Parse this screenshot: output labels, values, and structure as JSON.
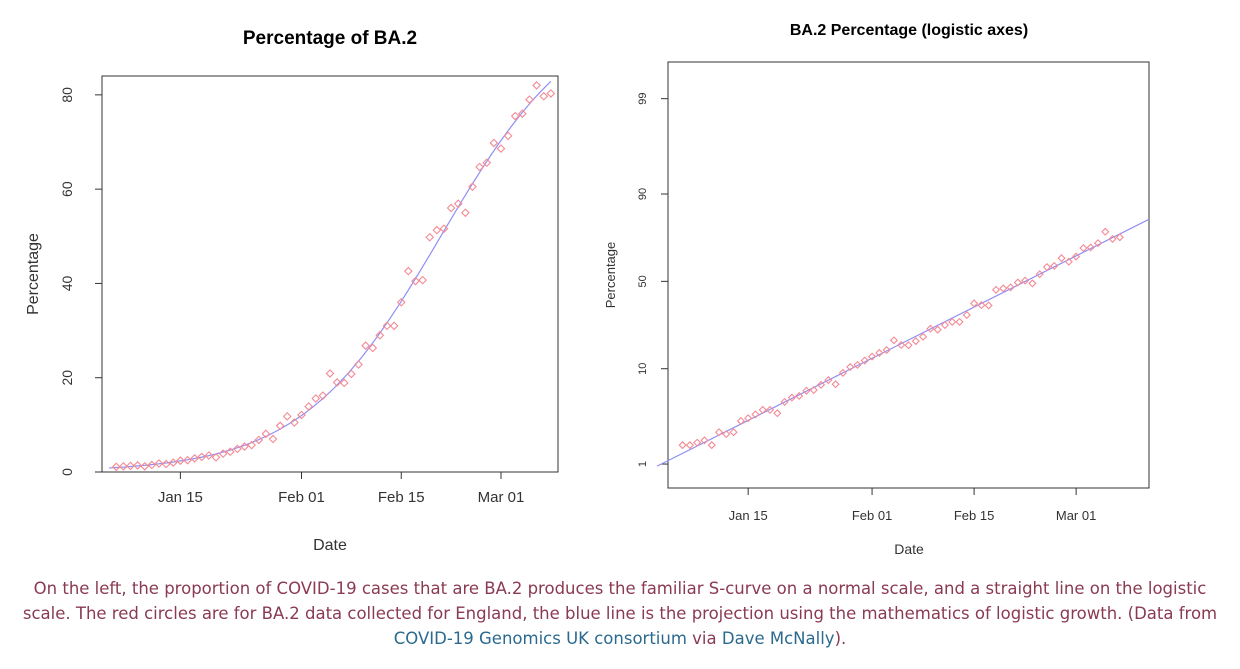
{
  "colors": {
    "points": "#f48a94",
    "fit_line": "#8f8ff5",
    "caption_text": "#8a3a52",
    "caption_link": "#2b6a8e"
  },
  "chart_data": [
    {
      "type": "scatter",
      "title": "Percentage of BA.2",
      "xlabel": "Date",
      "ylabel": "Percentage",
      "x_ticks": [
        "Jan 15",
        "Feb 01",
        "Feb 15",
        "Mar 01"
      ],
      "y_ticks": [
        0,
        20,
        40,
        60,
        80
      ],
      "xlim": [
        "2022-01-04",
        "2022-03-09"
      ],
      "ylim": [
        0,
        84
      ],
      "series": [
        {
          "points": [
            [
              "2022-01-06",
              1.1
            ],
            [
              "2022-01-07",
              1.2
            ],
            [
              "2022-01-08",
              1.3
            ],
            [
              "2022-01-09",
              1.4
            ],
            [
              "2022-01-10",
              1.2
            ],
            [
              "2022-01-11",
              1.5
            ],
            [
              "2022-01-12",
              1.8
            ],
            [
              "2022-01-13",
              1.7
            ],
            [
              "2022-01-14",
              2.0
            ],
            [
              "2022-01-15",
              2.4
            ],
            [
              "2022-01-16",
              2.5
            ],
            [
              "2022-01-17",
              2.9
            ],
            [
              "2022-01-18",
              3.2
            ],
            [
              "2022-01-19",
              3.5
            ],
            [
              "2022-01-20",
              3.1
            ],
            [
              "2022-01-21",
              3.9
            ],
            [
              "2022-01-22",
              4.3
            ],
            [
              "2022-01-23",
              4.9
            ],
            [
              "2022-01-24",
              5.4
            ],
            [
              "2022-01-25",
              5.7
            ],
            [
              "2022-01-26",
              6.8
            ],
            [
              "2022-01-27",
              8.1
            ],
            [
              "2022-01-28",
              7.0
            ],
            [
              "2022-01-29",
              9.8
            ],
            [
              "2022-01-30",
              11.8
            ],
            [
              "2022-01-31",
              10.5
            ],
            [
              "2022-02-01",
              12.1
            ],
            [
              "2022-02-02",
              13.9
            ],
            [
              "2022-02-03",
              15.6
            ],
            [
              "2022-02-04",
              16.2
            ],
            [
              "2022-02-05",
              20.9
            ],
            [
              "2022-02-06",
              19.0
            ],
            [
              "2022-02-07",
              18.9
            ],
            [
              "2022-02-08",
              20.8
            ],
            [
              "2022-02-09",
              22.8
            ],
            [
              "2022-02-10",
              26.8
            ],
            [
              "2022-02-11",
              26.3
            ],
            [
              "2022-02-12",
              29.0
            ],
            [
              "2022-02-13",
              31.0
            ],
            [
              "2022-02-14",
              31.0
            ],
            [
              "2022-02-15",
              36.0
            ],
            [
              "2022-02-16",
              42.6
            ],
            [
              "2022-02-17",
              40.5
            ],
            [
              "2022-02-18",
              40.7
            ],
            [
              "2022-02-19",
              49.8
            ],
            [
              "2022-02-20",
              51.3
            ],
            [
              "2022-02-21",
              51.6
            ],
            [
              "2022-02-22",
              56.0
            ],
            [
              "2022-02-23",
              56.9
            ],
            [
              "2022-02-24",
              55.0
            ],
            [
              "2022-02-25",
              60.5
            ],
            [
              "2022-02-26",
              64.7
            ],
            [
              "2022-02-27",
              65.6
            ],
            [
              "2022-02-28",
              69.8
            ],
            [
              "2022-03-01",
              68.6
            ],
            [
              "2022-03-02",
              71.3
            ],
            [
              "2022-03-03",
              75.5
            ],
            [
              "2022-03-04",
              76.0
            ],
            [
              "2022-03-05",
              79.0
            ],
            [
              "2022-03-06",
              82.0
            ],
            [
              "2022-03-07",
              79.7
            ],
            [
              "2022-03-08",
              80.3
            ]
          ]
        }
      ]
    },
    {
      "type": "scatter",
      "title": "BA.2 Percentage (logistic axes)",
      "xlabel": "Date",
      "ylabel": "Percentage",
      "y_scale": "logit",
      "x_ticks": [
        "Jan 15",
        "Feb 01",
        "Feb 15",
        "Mar 01"
      ],
      "y_ticks": [
        1,
        10,
        50,
        90,
        99
      ],
      "xlim": [
        "2022-01-04",
        "2022-03-11"
      ],
      "series": [
        {
          "points": [
            [
              "2022-01-06",
              1.6
            ],
            [
              "2022-01-07",
              1.6
            ],
            [
              "2022-01-08",
              1.7
            ],
            [
              "2022-01-09",
              1.8
            ],
            [
              "2022-01-10",
              1.6
            ],
            [
              "2022-01-11",
              2.2
            ],
            [
              "2022-01-12",
              2.1
            ],
            [
              "2022-01-13",
              2.2
            ],
            [
              "2022-01-14",
              2.9
            ],
            [
              "2022-01-15",
              3.1
            ],
            [
              "2022-01-16",
              3.4
            ],
            [
              "2022-01-17",
              3.8
            ],
            [
              "2022-01-18",
              3.8
            ],
            [
              "2022-01-19",
              3.5
            ],
            [
              "2022-01-20",
              4.6
            ],
            [
              "2022-01-21",
              5.1
            ],
            [
              "2022-01-22",
              5.3
            ],
            [
              "2022-01-23",
              6.0
            ],
            [
              "2022-01-24",
              6.1
            ],
            [
              "2022-01-25",
              6.9
            ],
            [
              "2022-01-26",
              7.7
            ],
            [
              "2022-01-27",
              7.0
            ],
            [
              "2022-01-28",
              9.1
            ],
            [
              "2022-01-29",
              10.4
            ],
            [
              "2022-01-30",
              10.9
            ],
            [
              "2022-01-31",
              12.0
            ],
            [
              "2022-02-01",
              13.1
            ],
            [
              "2022-02-02",
              14.2
            ],
            [
              "2022-02-03",
              15.1
            ],
            [
              "2022-02-04",
              18.5
            ],
            [
              "2022-02-05",
              16.8
            ],
            [
              "2022-02-06",
              16.7
            ],
            [
              "2022-02-07",
              18.2
            ],
            [
              "2022-02-08",
              19.9
            ],
            [
              "2022-02-09",
              23.3
            ],
            [
              "2022-02-10",
              22.9
            ],
            [
              "2022-02-11",
              25.0
            ],
            [
              "2022-02-12",
              26.5
            ],
            [
              "2022-02-13",
              26.5
            ],
            [
              "2022-02-14",
              30.0
            ],
            [
              "2022-02-15",
              36.5
            ],
            [
              "2022-02-16",
              35.5
            ],
            [
              "2022-02-17",
              35.3
            ],
            [
              "2022-02-18",
              44.7
            ],
            [
              "2022-02-19",
              45.6
            ],
            [
              "2022-02-20",
              46.2
            ],
            [
              "2022-02-21",
              49.3
            ],
            [
              "2022-02-22",
              50.5
            ],
            [
              "2022-02-23",
              48.7
            ],
            [
              "2022-02-24",
              54.5
            ],
            [
              "2022-02-25",
              58.9
            ],
            [
              "2022-02-26",
              59.6
            ],
            [
              "2022-02-27",
              64.2
            ],
            [
              "2022-02-28",
              62.1
            ],
            [
              "2022-03-01",
              65.1
            ],
            [
              "2022-03-02",
              69.8
            ],
            [
              "2022-03-03",
              70.1
            ],
            [
              "2022-03-04",
              72.3
            ],
            [
              "2022-03-05",
              77.7
            ],
            [
              "2022-03-06",
              74.4
            ],
            [
              "2022-03-07",
              75.2
            ]
          ]
        }
      ]
    }
  ],
  "caption": {
    "text": "On the left, the proportion of COVID-19 cases that are BA.2 produces the familiar S-curve on a normal scale, and a straight line on the logistic scale. The red circles are for BA.2 data collected for England, the blue line is the projection using the mathematics of logistic growth. (Data from ",
    "link1": "COVID-19 Genomics UK consortium",
    "middle": " via ",
    "link2": "Dave McNally",
    "end": ")."
  }
}
